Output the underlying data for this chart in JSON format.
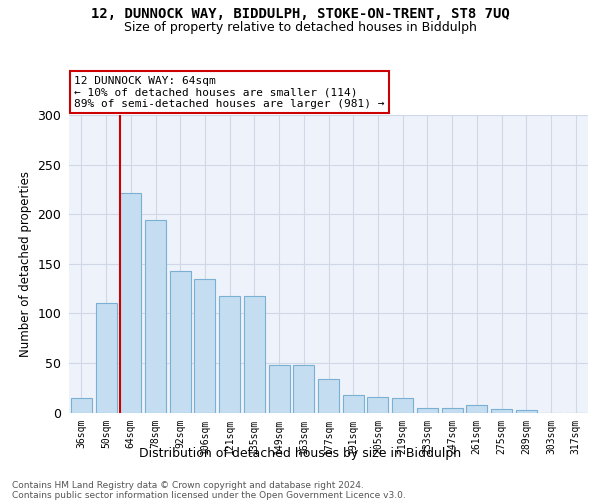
{
  "title1": "12, DUNNOCK WAY, BIDDULPH, STOKE-ON-TRENT, ST8 7UQ",
  "title2": "Size of property relative to detached houses in Biddulph",
  "xlabel": "Distribution of detached houses by size in Biddulph",
  "ylabel": "Number of detached properties",
  "categories": [
    "36sqm",
    "50sqm",
    "64sqm",
    "78sqm",
    "92sqm",
    "106sqm",
    "121sqm",
    "135sqm",
    "149sqm",
    "163sqm",
    "177sqm",
    "191sqm",
    "205sqm",
    "219sqm",
    "233sqm",
    "247sqm",
    "261sqm",
    "275sqm",
    "289sqm",
    "303sqm",
    "317sqm"
  ],
  "values": [
    15,
    110,
    221,
    194,
    143,
    135,
    117,
    117,
    48,
    48,
    34,
    18,
    16,
    15,
    5,
    5,
    8,
    4,
    3,
    0,
    0
  ],
  "bar_color": "#c5ddf0",
  "bar_edgecolor": "#7ab0d4",
  "vline_color": "#cc0000",
  "annotation_line1": "12 DUNNOCK WAY: 64sqm",
  "annotation_line2": "← 10% of detached houses are smaller (114)",
  "annotation_line3": "89% of semi-detached houses are larger (981) →",
  "ylim_max": 300,
  "yticks": [
    0,
    50,
    100,
    150,
    200,
    250,
    300
  ],
  "grid_color": "#d0d8e8",
  "bg_color": "#eef2fa",
  "footer1": "Contains HM Land Registry data © Crown copyright and database right 2024.",
  "footer2": "Contains public sector information licensed under the Open Government Licence v3.0."
}
